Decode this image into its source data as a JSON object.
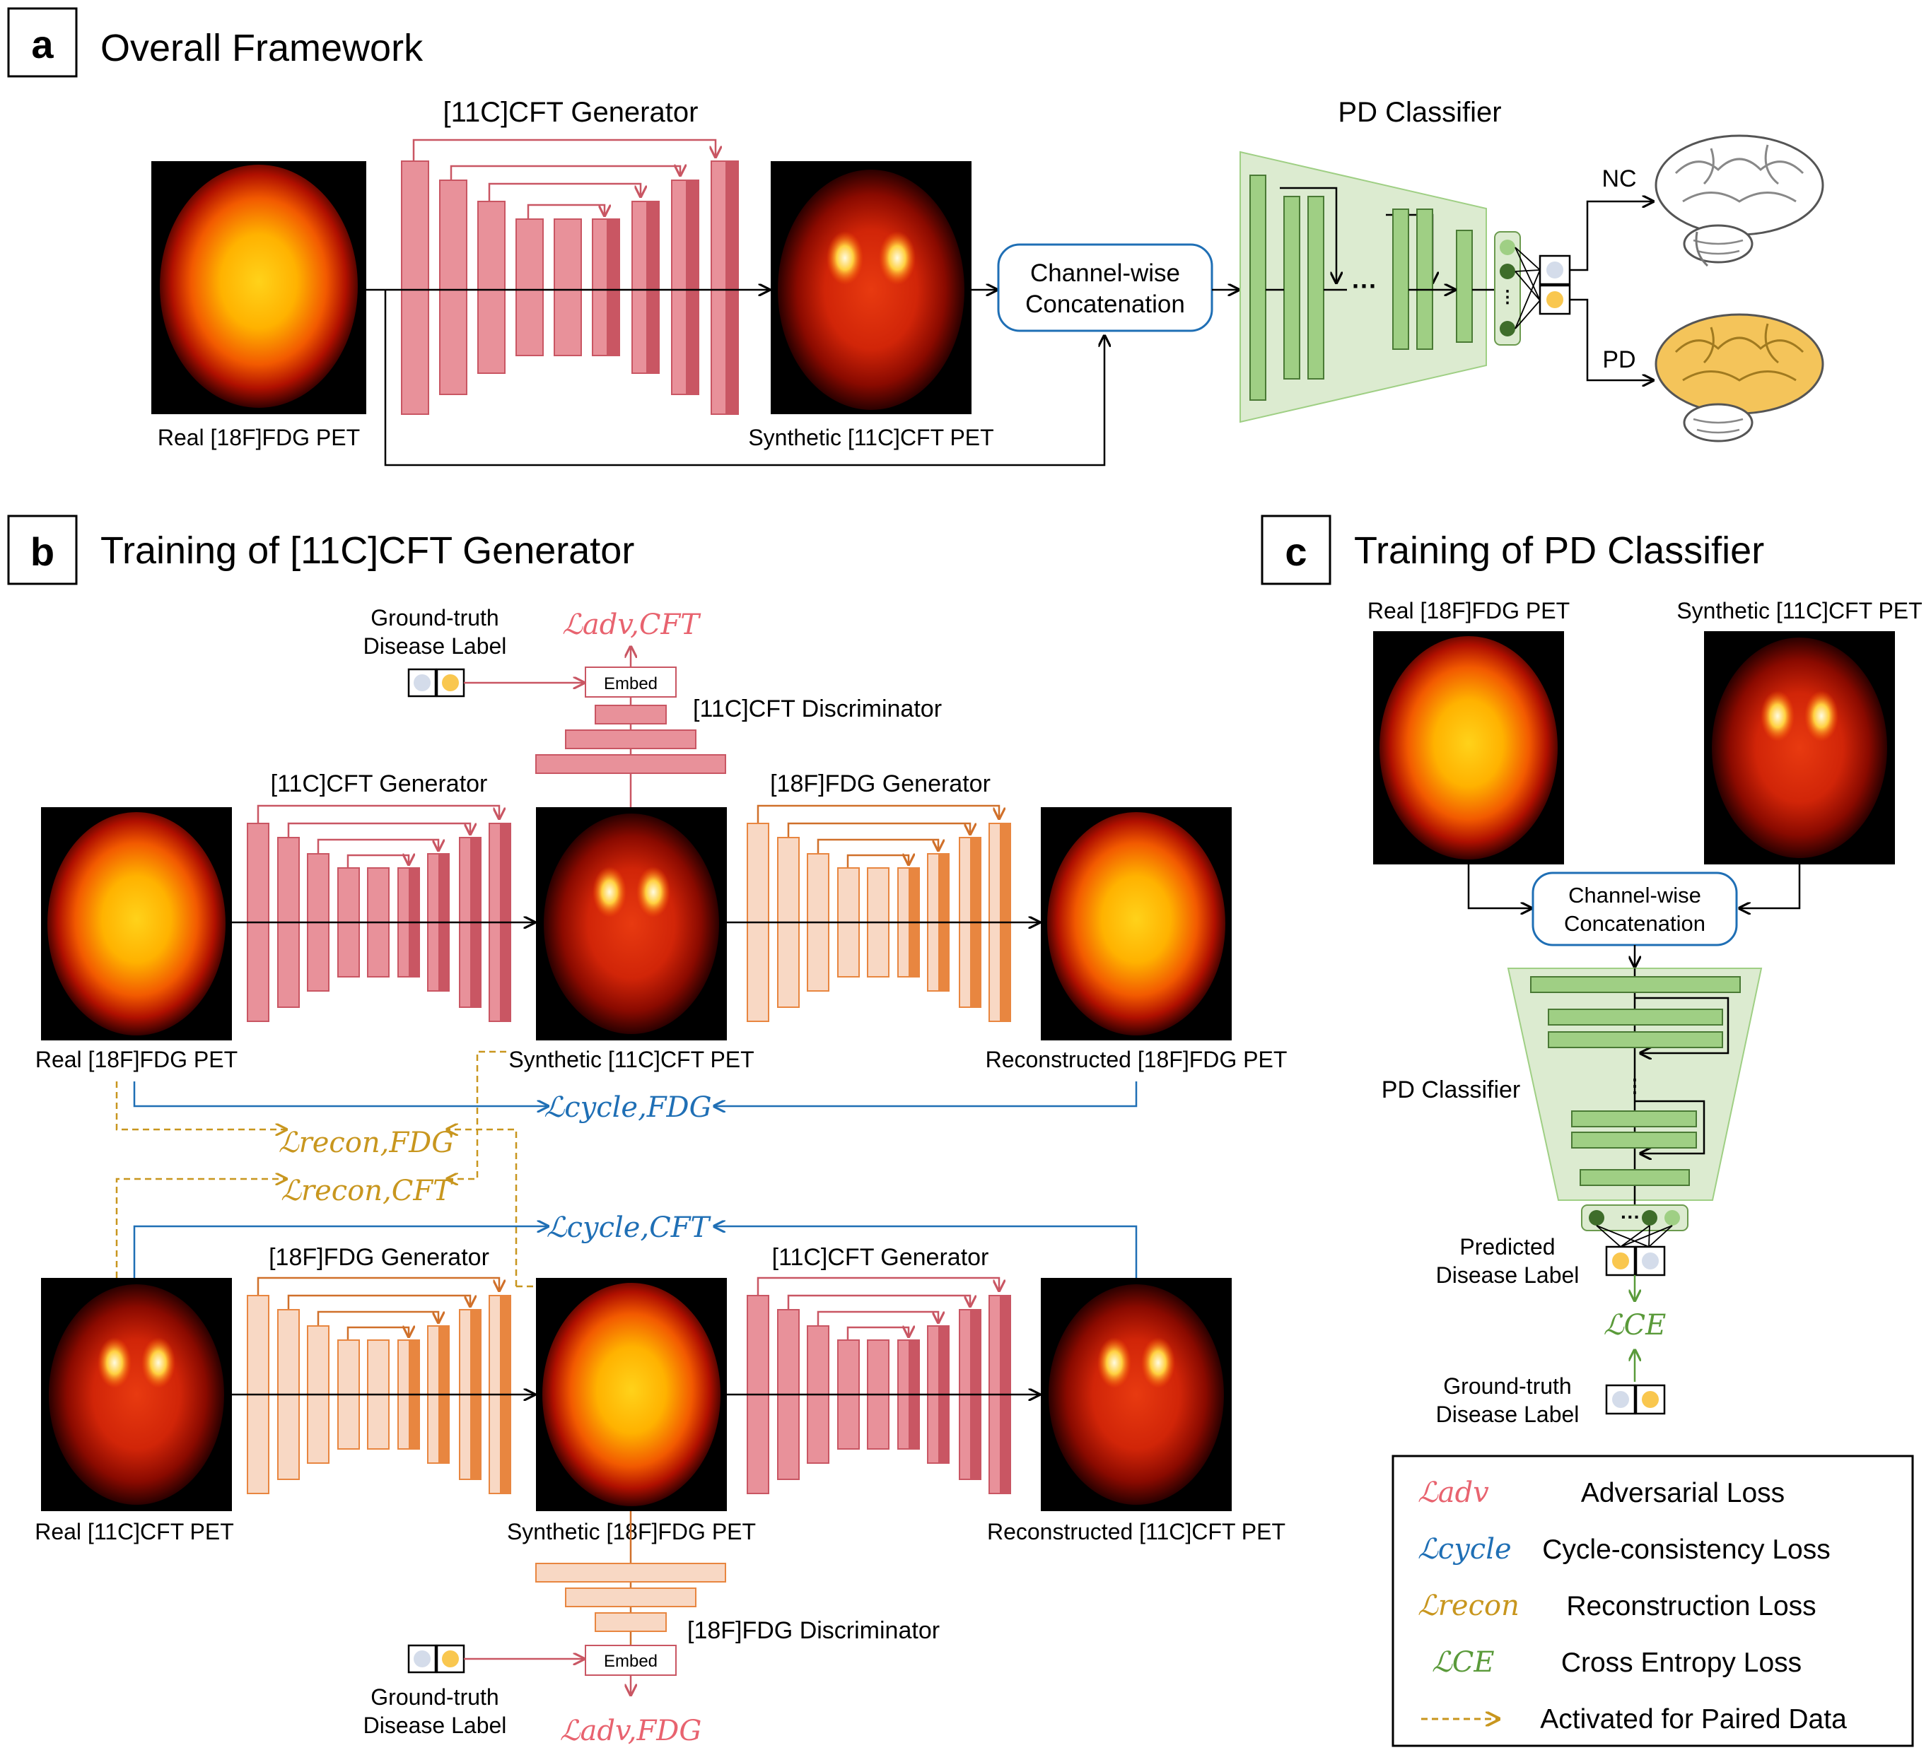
{
  "panel_a": {
    "tag": "a",
    "title": "Overall Framework",
    "generator_label": "[11C]CFT Generator",
    "classifier_label": "PD Classifier",
    "input_label": "Real [18F]FDG PET",
    "synth_label": "Synthetic [11C]CFT PET",
    "concat_line1": "Channel-wise",
    "concat_line2": "Concatenation",
    "nc_label": "NC",
    "pd_label": "PD"
  },
  "panel_b": {
    "tag": "b",
    "title": "Training of [11C]CFT Generator",
    "gt_label_line1": "Ground-truth",
    "gt_label_line2": "Disease Label",
    "embed_label": "Embed",
    "cft_discriminator": "[11C]CFT Discriminator",
    "fdg_discriminator": "[18F]FDG Discriminator",
    "cft_generator": "[11C]CFT Generator",
    "fdg_generator": "[18F]FDG Generator",
    "real_fdg": "Real [18F]FDG PET",
    "synth_cft": "Synthetic [11C]CFT PET",
    "recon_fdg": "Reconstructed [18F]FDG PET",
    "real_cft": "Real [11C]CFT PET",
    "synth_fdg": "Synthetic [18F]FDG PET",
    "recon_cft": "Reconstructed [11C]CFT PET",
    "loss_adv_cft": "ℒadv,CFT",
    "loss_adv_fdg": "ℒadv,FDG",
    "loss_cycle_fdg": "ℒcycle,FDG",
    "loss_cycle_cft": "ℒcycle,CFT",
    "loss_recon_fdg": "ℒrecon,FDG",
    "loss_recon_cft": "ℒrecon,CFT"
  },
  "panel_c": {
    "tag": "c",
    "title": "Training of PD Classifier",
    "real_fdg": "Real [18F]FDG PET",
    "synth_cft": "Synthetic [11C]CFT PET",
    "concat_line1": "Channel-wise",
    "concat_line2": "Concatenation",
    "classifier_label": "PD Classifier",
    "pred_line1": "Predicted",
    "pred_line2": "Disease Label",
    "loss_ce": "ℒCE",
    "gt_line1": "Ground-truth",
    "gt_line2": "Disease Label"
  },
  "legend": [
    {
      "symbol": "ℒadv",
      "text": "Adversarial Loss",
      "color": "#e8636f"
    },
    {
      "symbol": "ℒcycle",
      "text": "Cycle-consistency Loss",
      "color": "#1f6fb5"
    },
    {
      "symbol": "ℒrecon",
      "text": "Reconstruction Loss",
      "color": "#c8961e"
    },
    {
      "symbol": "ℒCE",
      "text": "Cross Entropy Loss",
      "color": "#5a9a3a"
    },
    {
      "symbol": "",
      "text": "Activated for Paired Data",
      "color": "#c8961e"
    }
  ],
  "colors": {
    "cft": "#e8919a",
    "cft_dark": "#c95663",
    "fdg": "#f8d8c4",
    "fdg_dark": "#e88640",
    "classifier": "#9fcf84",
    "classifier_fill": "#dcebd0",
    "adv": "#e8636f",
    "cycle": "#1f6fb5",
    "recon": "#c8961e",
    "ce": "#5a9a3a",
    "concat_border": "#1f6fb5",
    "nc_dot": "#d4dcea",
    "pd_dot": "#f9c74f",
    "brain_pd": "#f4c45a"
  }
}
